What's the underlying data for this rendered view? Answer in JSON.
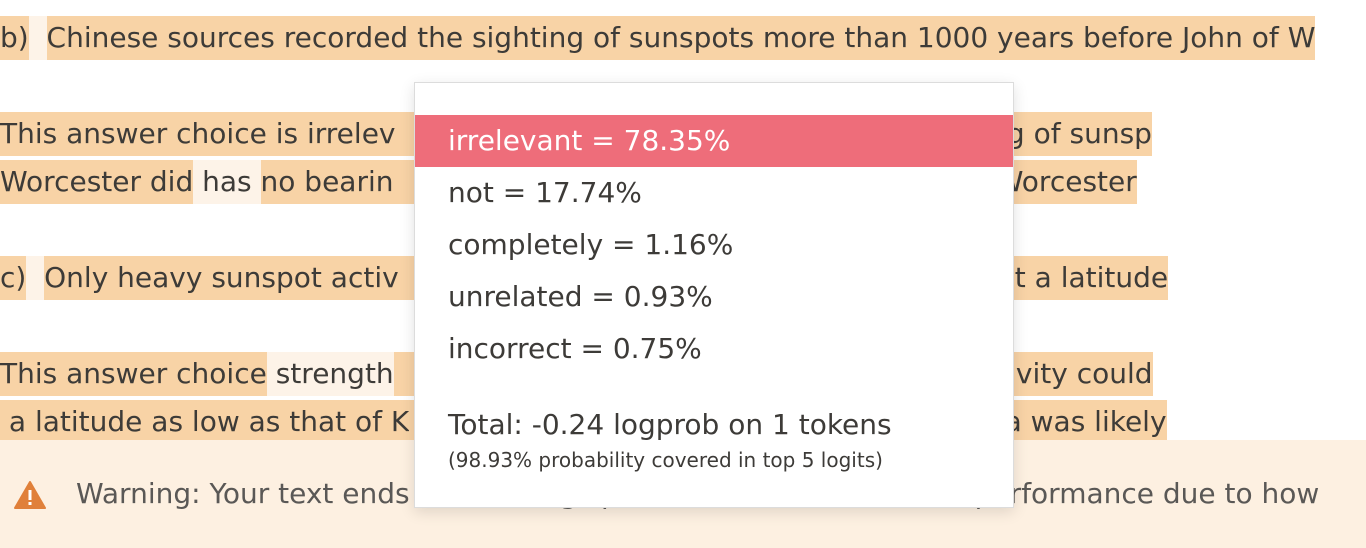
{
  "lines": [
    {
      "id": "b",
      "segments": [
        {
          "text": "b)",
          "style": "hl-strong"
        },
        {
          "text": "  ",
          "style": "hl-faint"
        },
        {
          "text": "Chinese sources recorded the sighting of sunspots more than 1000 years before John of W",
          "style": "hl-strong"
        }
      ]
    },
    {
      "id": "b-answer-1",
      "segments": [
        {
          "text": "This answer choice is irrelev",
          "style": "hl-strong"
        },
        {
          "text": "                                             ded the sighting of sunsp",
          "style": "hl-strong"
        }
      ]
    },
    {
      "id": "b-answer-2",
      "segments": [
        {
          "text": "Worcester did",
          "style": "hl-strong"
        },
        {
          "text": " has ",
          "style": "hl-faint"
        },
        {
          "text": "no bearin",
          "style": "hl-strong"
        },
        {
          "text": "                                              ed by John of Worcester",
          "style": "hl-strong"
        }
      ]
    },
    {
      "id": "c",
      "segments": [
        {
          "text": "c)",
          "style": "hl-strong"
        },
        {
          "text": "  ",
          "style": "hl-faint"
        },
        {
          "text": "Only heavy sunspot activ",
          "style": "hl-strong"
        },
        {
          "text": "                                              alis viewable at a latitude",
          "style": "hl-strong"
        }
      ]
    },
    {
      "id": "c-answer-1",
      "segments": [
        {
          "text": "This answer choice",
          "style": "hl-strong"
        },
        {
          "text": " strength",
          "style": "hl-faint"
        },
        {
          "text": "                                              vy sunspot activity could",
          "style": "hl-strong"
        }
      ]
    },
    {
      "id": "c-answer-2",
      "segments": [
        {
          "text": " a latitude as low as that of K",
          "style": "hl-strong"
        },
        {
          "text": "                                              erved in Korea was likely",
          "style": "hl-strong"
        }
      ]
    }
  ],
  "warning": {
    "icon": "warning-triangle-icon",
    "text": "Warning: Your text ends in a trailing space, which causes worse performance due to how"
  },
  "popup": {
    "tokens": [
      {
        "label": "irrelevant = 78.35%",
        "selected": true
      },
      {
        "label": "not = 17.74%",
        "selected": false
      },
      {
        "label": "completely = 1.16%",
        "selected": false
      },
      {
        "label": "unrelated = 0.93%",
        "selected": false
      },
      {
        "label": "incorrect = 0.75%",
        "selected": false
      }
    ],
    "total": "Total: -0.24 logprob on 1 tokens",
    "covered": "(98.93% probability covered in top 5 logits)"
  },
  "colors": {
    "highlight": "#f8d3a6",
    "selected_token": "#ee6d7a",
    "warning_bg": "#fdf0e1",
    "warning_icon": "#e0803a"
  }
}
